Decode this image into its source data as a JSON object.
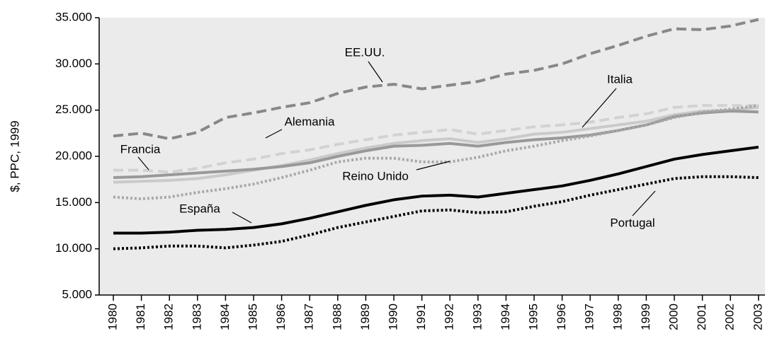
{
  "chart_data": {
    "type": "line",
    "ylabel": "$, PPC, 1999",
    "categories": [
      "1980",
      "1981",
      "1982",
      "1983",
      "1984",
      "1985",
      "1986",
      "1987",
      "1988",
      "1989",
      "1990",
      "1991",
      "1992",
      "1993",
      "1994",
      "1995",
      "1996",
      "1997",
      "1998",
      "1999",
      "2000",
      "2001",
      "2002",
      "2003"
    ],
    "ylim": [
      5000,
      35000
    ],
    "yticks": [
      {
        "value": 5000,
        "label": "5.000"
      },
      {
        "value": 10000,
        "label": "10.000"
      },
      {
        "value": 15000,
        "label": "15.000"
      },
      {
        "value": 20000,
        "label": "20.000"
      },
      {
        "value": 25000,
        "label": "25.000"
      },
      {
        "value": 30000,
        "label": "30.000"
      },
      {
        "value": 35000,
        "label": "35.000"
      }
    ],
    "series": [
      {
        "name": "EE.UU.",
        "color": "#888888",
        "style": "dashed",
        "values": [
          22200,
          22500,
          21900,
          22600,
          24200,
          24700,
          25300,
          25800,
          26800,
          27500,
          27800,
          27300,
          27700,
          28100,
          28900,
          29300,
          30000,
          31100,
          32000,
          33000,
          33800,
          33700,
          34100,
          34800
        ]
      },
      {
        "name": "Alemania",
        "color": "#d2d2d2",
        "style": "dashed",
        "values": [
          18500,
          18500,
          18300,
          18700,
          19300,
          19700,
          20300,
          20700,
          21300,
          21800,
          22300,
          22600,
          22900,
          22400,
          22800,
          23200,
          23400,
          23700,
          24200,
          24600,
          25300,
          25500,
          25500,
          25500
        ]
      },
      {
        "name": "Italia",
        "color": "#cacaca",
        "style": "solid",
        "values": [
          17200,
          17300,
          17400,
          17600,
          18000,
          18500,
          19000,
          19600,
          20300,
          20900,
          21400,
          21700,
          21900,
          21500,
          21900,
          22400,
          22600,
          23000,
          23400,
          23800,
          24500,
          24900,
          25000,
          25300
        ]
      },
      {
        "name": "Francia",
        "color": "#999999",
        "style": "solid",
        "values": [
          17700,
          17800,
          18000,
          18200,
          18400,
          18600,
          18900,
          19300,
          20000,
          20600,
          21100,
          21200,
          21400,
          21100,
          21500,
          21800,
          22000,
          22300,
          22800,
          23400,
          24300,
          24700,
          24900,
          24800
        ]
      },
      {
        "name": "Reino Unido",
        "color": "#a8a8a8",
        "style": "dotted",
        "values": [
          15600,
          15400,
          15600,
          16100,
          16500,
          17000,
          17700,
          18500,
          19400,
          19800,
          19800,
          19400,
          19400,
          19900,
          20600,
          21100,
          21700,
          22200,
          22800,
          23400,
          24200,
          24800,
          25100,
          25500
        ]
      },
      {
        "name": "España",
        "color": "#000000",
        "style": "solid",
        "values": [
          11700,
          11700,
          11800,
          12000,
          12100,
          12300,
          12700,
          13300,
          14000,
          14700,
          15300,
          15700,
          15800,
          15600,
          16000,
          16400,
          16800,
          17400,
          18100,
          18900,
          19700,
          20200,
          20600,
          21000
        ]
      },
      {
        "name": "Portugal",
        "color": "#000000",
        "style": "dotted",
        "values": [
          10000,
          10100,
          10300,
          10300,
          10100,
          10400,
          10800,
          11500,
          12300,
          12900,
          13500,
          14100,
          14200,
          13900,
          14000,
          14600,
          15100,
          15800,
          16400,
          17000,
          17600,
          17800,
          17800,
          17700
        ]
      }
    ]
  }
}
